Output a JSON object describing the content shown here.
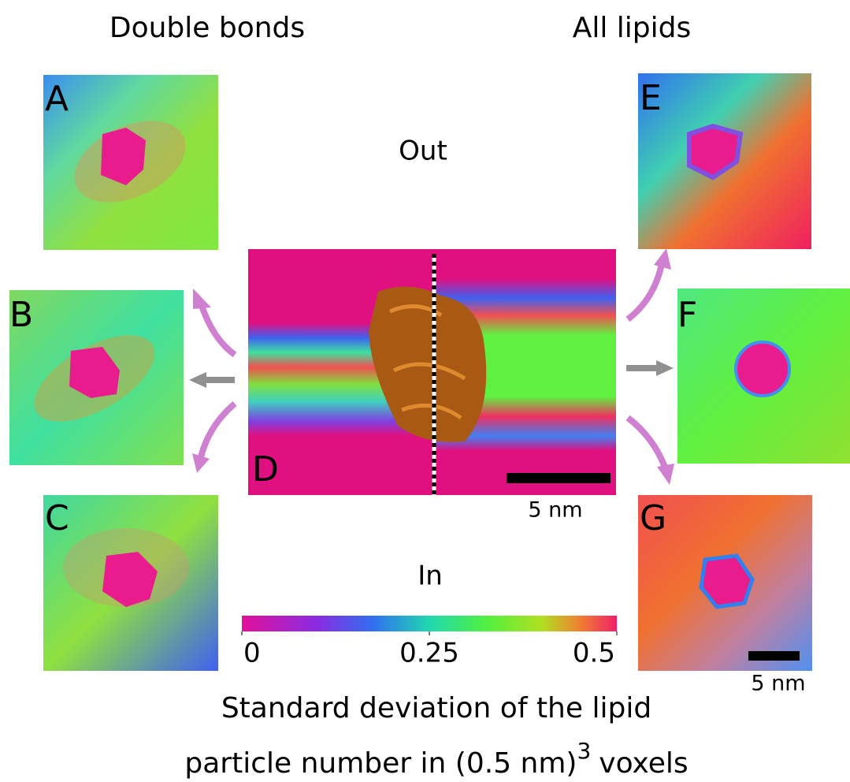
{
  "headers": {
    "left": "Double bonds",
    "right": "All lipids"
  },
  "panels": {
    "a": "A",
    "b": "B",
    "c": "C",
    "d": "D",
    "e": "E",
    "f": "F",
    "g": "G"
  },
  "sides": {
    "out": "Out",
    "in": "In"
  },
  "scale_bars": {
    "center": "5 nm",
    "corner": "5 nm"
  },
  "colorbar": {
    "lim": [
      0,
      0.5
    ],
    "ticks": [
      0,
      0.25,
      0.5
    ]
  },
  "caption": {
    "line1": "Standard deviation of the lipid",
    "line2": "particle number in (0.5 nm)",
    "superscript": "3",
    "line2_end": "voxels"
  }
}
